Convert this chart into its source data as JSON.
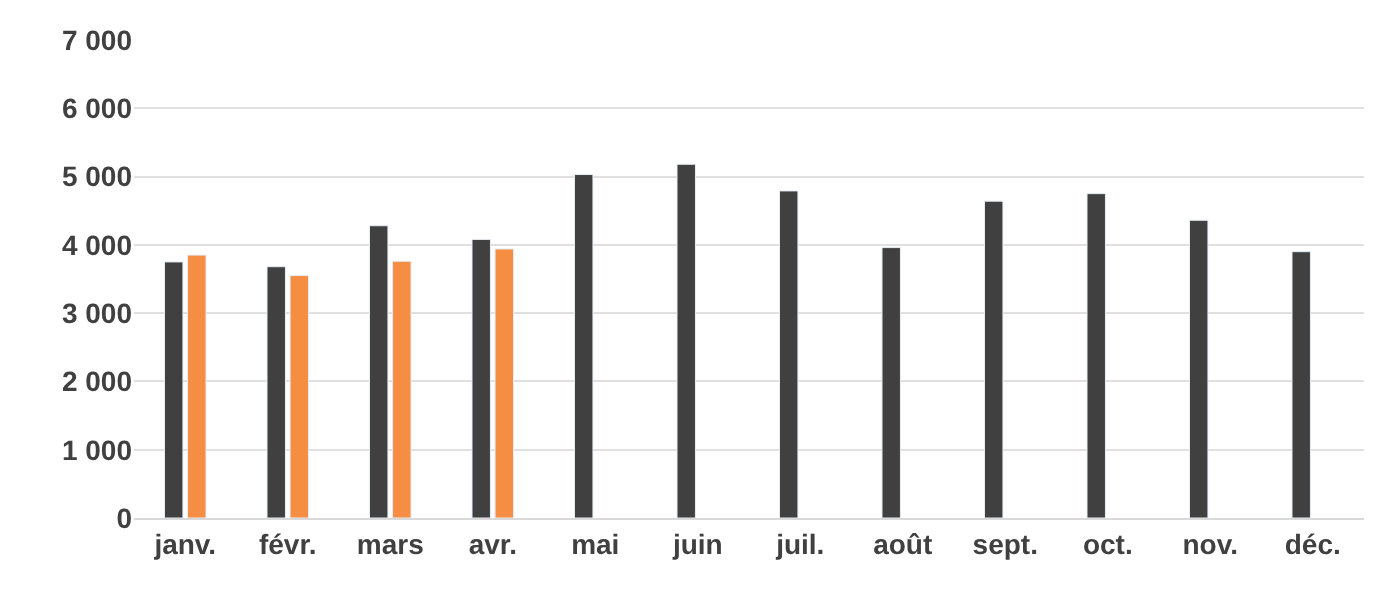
{
  "chart_data": {
    "type": "bar",
    "categories": [
      "janv.",
      "févr.",
      "mars",
      "avr.",
      "mai",
      "juin",
      "juil.",
      "août",
      "sept.",
      "oct.",
      "nov.",
      "déc."
    ],
    "series": [
      {
        "color": "#404040",
        "values": [
          3750,
          3680,
          4280,
          4080,
          5030,
          5180,
          4790,
          3960,
          4640,
          4750,
          4360,
          3900
        ]
      },
      {
        "color": "#f58d42",
        "values": [
          3850,
          3550,
          3760,
          3940,
          null,
          null,
          null,
          null,
          null,
          null,
          null,
          null
        ]
      }
    ],
    "ylim": [
      0,
      7000
    ],
    "yticks": [
      {
        "value": 0,
        "label": "0"
      },
      {
        "value": 1000,
        "label": "1 000"
      },
      {
        "value": 2000,
        "label": "2 000"
      },
      {
        "value": 3000,
        "label": "3 000"
      },
      {
        "value": 4000,
        "label": "4 000"
      },
      {
        "value": 5000,
        "label": "5 000"
      },
      {
        "value": 6000,
        "label": "6 000"
      },
      {
        "value": 7000,
        "label": "7 000"
      }
    ],
    "grid": "y"
  }
}
